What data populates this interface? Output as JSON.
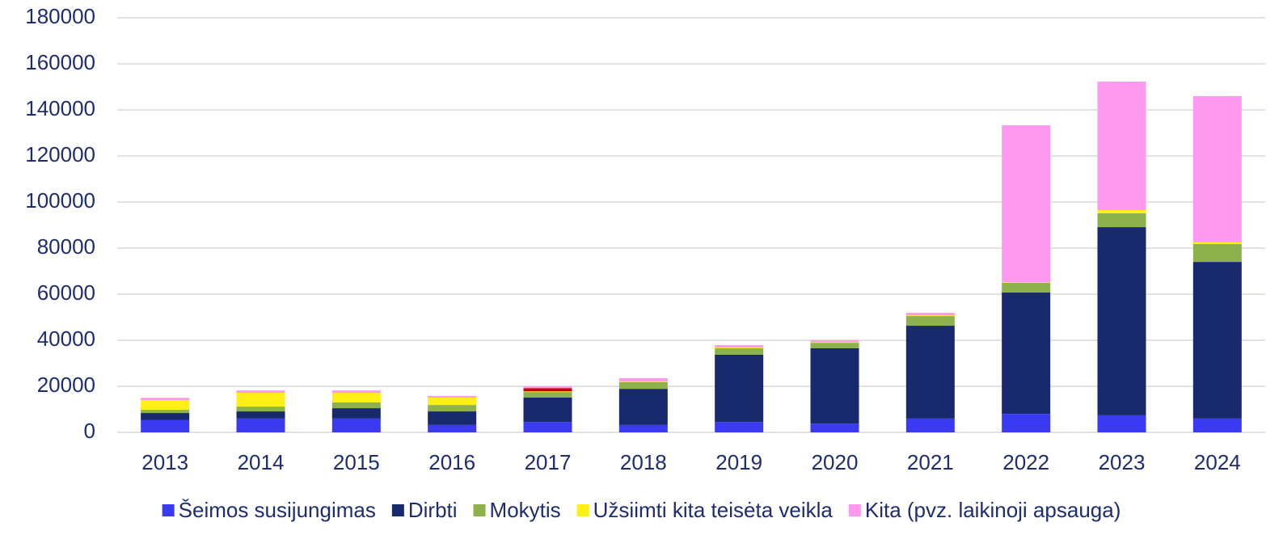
{
  "chart_data": {
    "type": "bar",
    "stacked": true,
    "categories": [
      "2013",
      "2014",
      "2015",
      "2016",
      "2017",
      "2018",
      "2019",
      "2020",
      "2021",
      "2022",
      "2023",
      "2024"
    ],
    "series": [
      {
        "name": "Šeimos susijungimas",
        "color": "#3a3af2",
        "values": [
          5300,
          6000,
          6000,
          3200,
          4500,
          3200,
          4500,
          3800,
          6000,
          8000,
          7400,
          6000
        ]
      },
      {
        "name": "Dirbti",
        "color": "#19296e",
        "values": [
          3100,
          3100,
          4500,
          5900,
          10600,
          15700,
          29200,
          32700,
          40300,
          52700,
          81700,
          68000
        ]
      },
      {
        "name": "Mokytis",
        "color": "#8db14b",
        "values": [
          1400,
          2100,
          2500,
          2800,
          2400,
          2900,
          2800,
          2400,
          4200,
          4200,
          6000,
          7800
        ]
      },
      {
        "name": "Užsiimti kita teisėta veikla",
        "color": "#ffef14",
        "values": [
          4200,
          6000,
          4200,
          3200,
          300,
          200,
          300,
          300,
          300,
          300,
          1400,
          700
        ]
      },
      {
        "color": "#c00018",
        "values": [
          0,
          0,
          0,
          0,
          1400,
          0,
          0,
          0,
          0,
          0,
          0,
          0
        ]
      },
      {
        "name": "Kita (pvz. laikinoji apsauga)",
        "color": "#ff99f0",
        "values": [
          1000,
          1000,
          1000,
          700,
          800,
          1500,
          1100,
          800,
          1100,
          68100,
          55800,
          63500
        ]
      }
    ],
    "ylim": [
      0,
      180000
    ],
    "yticks": [
      0,
      20000,
      40000,
      60000,
      80000,
      100000,
      120000,
      140000,
      160000,
      180000
    ],
    "grid": true,
    "legend": "bottom"
  }
}
